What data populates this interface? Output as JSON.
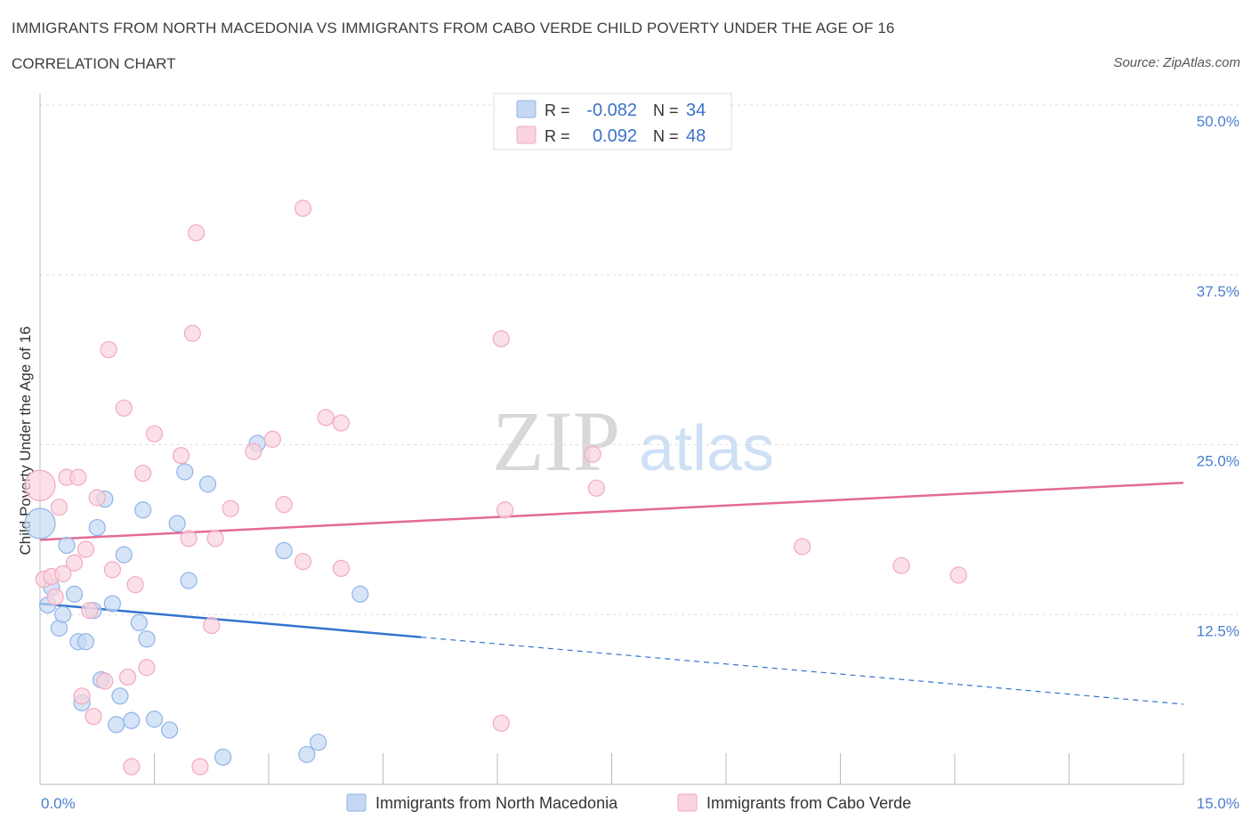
{
  "header": {
    "title": "IMMIGRANTS FROM NORTH MACEDONIA VS IMMIGRANTS FROM CABO VERDE CHILD POVERTY UNDER THE AGE OF 16",
    "subtitle": "CORRELATION CHART",
    "source": "Source: ZipAtlas.com"
  },
  "watermark": {
    "zip": "ZIP",
    "atlas": "atlas"
  },
  "chart_data": {
    "type": "scatter",
    "title": "IMMIGRANTS FROM NORTH MACEDONIA VS IMMIGRANTS FROM CABO VERDE CHILD POVERTY UNDER THE AGE OF 16",
    "xlabel": "",
    "ylabel": "Child Poverty Under the Age of 16",
    "xlim": [
      0,
      15
    ],
    "ylim": [
      0,
      50
    ],
    "x_tick_labels": {
      "min": "0.0%",
      "max": "15.0%"
    },
    "y_ticks": [
      {
        "value": 12.5,
        "label": "12.5%"
      },
      {
        "value": 25,
        "label": "25.0%"
      },
      {
        "value": 37.5,
        "label": "37.5%"
      },
      {
        "value": 50,
        "label": "50.0%"
      }
    ],
    "grid": true,
    "legend_position": "top-center",
    "stats": [
      {
        "r_label": "R =",
        "r_value": "-0.082",
        "n_label": "N =",
        "n_value": "34"
      },
      {
        "r_label": "R =",
        "r_value": "0.092",
        "n_label": "N =",
        "n_value": "48"
      }
    ],
    "series": [
      {
        "name": "Immigrants from North Macedonia",
        "color": "#8fb4e8",
        "fill": "#c4d8f4",
        "line_color": "#3174d0",
        "trend": {
          "x0": 0,
          "y0": 13.3,
          "x1": 15,
          "y1": 5.9,
          "solid_until_x": 5
        },
        "points": [
          [
            0.0,
            19.2
          ],
          [
            0.1,
            13.2
          ],
          [
            0.15,
            14.5
          ],
          [
            0.25,
            11.5
          ],
          [
            0.3,
            12.5
          ],
          [
            0.35,
            17.6
          ],
          [
            0.45,
            14.0
          ],
          [
            0.5,
            10.5
          ],
          [
            0.55,
            6.0
          ],
          [
            0.6,
            10.5
          ],
          [
            0.7,
            12.8
          ],
          [
            0.75,
            18.9
          ],
          [
            0.8,
            7.7
          ],
          [
            0.85,
            21.0
          ],
          [
            0.95,
            13.3
          ],
          [
            1.0,
            4.4
          ],
          [
            1.05,
            6.5
          ],
          [
            1.1,
            16.9
          ],
          [
            1.2,
            4.7
          ],
          [
            1.3,
            11.9
          ],
          [
            1.35,
            20.2
          ],
          [
            1.4,
            10.7
          ],
          [
            1.5,
            4.8
          ],
          [
            1.7,
            4.0
          ],
          [
            1.8,
            19.2
          ],
          [
            1.9,
            23.0
          ],
          [
            1.95,
            15.0
          ],
          [
            2.2,
            22.1
          ],
          [
            2.4,
            2.0
          ],
          [
            2.85,
            25.1
          ],
          [
            3.2,
            17.2
          ],
          [
            3.5,
            2.2
          ],
          [
            3.65,
            3.1
          ],
          [
            4.2,
            14.0
          ]
        ]
      },
      {
        "name": "Immigrants from Cabo Verde",
        "color": "#f2a9bf",
        "fill": "#f9d3de",
        "line_color": "#e36b93",
        "trend": {
          "x0": 0,
          "y0": 18.0,
          "x1": 15,
          "y1": 22.2,
          "solid_until_x": 15
        },
        "points": [
          [
            0.0,
            22.0
          ],
          [
            0.05,
            15.1
          ],
          [
            0.15,
            15.3
          ],
          [
            0.2,
            13.8
          ],
          [
            0.25,
            20.4
          ],
          [
            0.3,
            15.5
          ],
          [
            0.35,
            22.6
          ],
          [
            0.45,
            16.3
          ],
          [
            0.5,
            22.6
          ],
          [
            0.55,
            6.5
          ],
          [
            0.6,
            17.3
          ],
          [
            0.65,
            12.8
          ],
          [
            0.7,
            5.0
          ],
          [
            0.75,
            21.1
          ],
          [
            0.85,
            7.6
          ],
          [
            0.9,
            32.0
          ],
          [
            0.95,
            15.8
          ],
          [
            1.1,
            27.7
          ],
          [
            1.15,
            7.9
          ],
          [
            1.2,
            1.3
          ],
          [
            1.25,
            14.7
          ],
          [
            1.35,
            22.9
          ],
          [
            1.4,
            8.6
          ],
          [
            1.5,
            25.8
          ],
          [
            1.85,
            24.2
          ],
          [
            1.95,
            18.1
          ],
          [
            2.0,
            33.2
          ],
          [
            2.05,
            40.6
          ],
          [
            2.1,
            1.3
          ],
          [
            2.25,
            11.7
          ],
          [
            2.3,
            18.1
          ],
          [
            2.5,
            20.3
          ],
          [
            2.8,
            24.5
          ],
          [
            3.05,
            25.4
          ],
          [
            3.2,
            20.6
          ],
          [
            3.45,
            16.4
          ],
          [
            3.45,
            42.4
          ],
          [
            3.75,
            27.0
          ],
          [
            3.95,
            26.6
          ],
          [
            3.95,
            15.9
          ],
          [
            6.05,
            4.5
          ],
          [
            6.05,
            32.8
          ],
          [
            6.1,
            20.2
          ],
          [
            7.25,
            24.3
          ],
          [
            7.3,
            21.8
          ],
          [
            10.0,
            17.5
          ],
          [
            11.3,
            16.1
          ],
          [
            12.05,
            15.4
          ]
        ]
      }
    ]
  }
}
